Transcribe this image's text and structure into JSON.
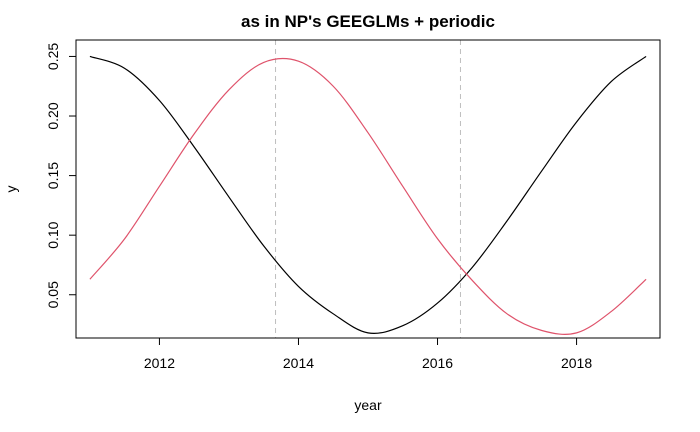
{
  "chart_data": {
    "type": "line",
    "title": "as in NP's GEEGLMs + periodic",
    "xlabel": "year",
    "ylabel": "y",
    "xlim": [
      2010.8,
      2019.2
    ],
    "ylim": [
      0.0137,
      0.2638
    ],
    "x_ticks": [
      2012,
      2014,
      2016,
      2018
    ],
    "x_tick_labels": [
      "2012",
      "2014",
      "2016",
      "2018"
    ],
    "y_ticks": [
      0.05,
      0.1,
      0.15,
      0.2,
      0.25
    ],
    "y_tick_labels": [
      "0.05",
      "0.10",
      "0.15",
      "0.20",
      "0.25"
    ],
    "grid": false,
    "reference_lines": [
      {
        "x": 13.67,
        "color": "#bebebe",
        "style": "dashed"
      },
      {
        "x": 16.33,
        "color": "#bebebe",
        "style": "dashed"
      }
    ],
    "series": [
      {
        "color": "#000000",
        "x": [
          2011,
          2011.5,
          2012,
          2012.5,
          2013,
          2013.5,
          2014,
          2014.5,
          2015,
          2015.5,
          2016,
          2016.5,
          2017,
          2017.5,
          2018,
          2018.5,
          2019
        ],
        "y": [
          0.25,
          0.24,
          0.213,
          0.174,
          0.132,
          0.091,
          0.057,
          0.034,
          0.018,
          0.024,
          0.043,
          0.073,
          0.112,
          0.154,
          0.195,
          0.229,
          0.25
        ]
      },
      {
        "color": "#DF536B",
        "x": [
          2011,
          2011.5,
          2012,
          2012.5,
          2013,
          2013.5,
          2014,
          2014.5,
          2015,
          2015.5,
          2016,
          2016.5,
          2017,
          2017.5,
          2018,
          2018.5,
          2019
        ],
        "y": [
          0.063,
          0.097,
          0.141,
          0.185,
          0.222,
          0.245,
          0.246,
          0.225,
          0.186,
          0.141,
          0.097,
          0.062,
          0.034,
          0.02,
          0.018,
          0.036,
          0.063
        ]
      }
    ]
  }
}
